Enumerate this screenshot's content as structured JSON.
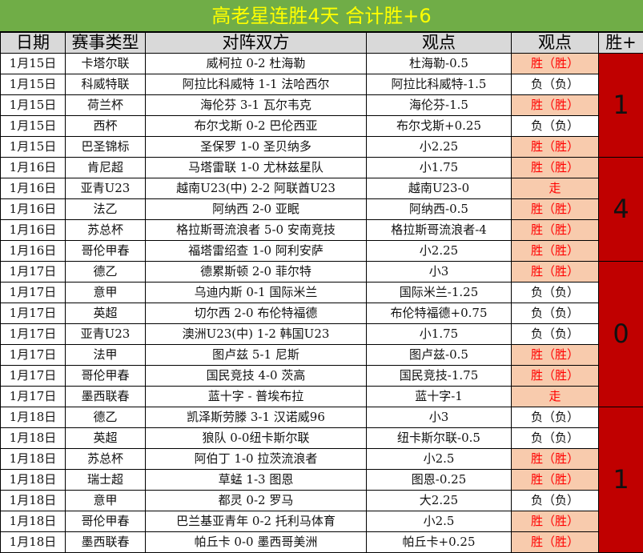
{
  "title": "高老星连胜4天  合计胜+6",
  "headers": [
    "日期",
    "赛事类型",
    "对阵双方",
    "观点",
    "观点",
    "胜+"
  ],
  "colors": {
    "title_bg": "#70ad47",
    "title_text": "#ffff00",
    "win_bg": "#f8cbad",
    "win_text": "#ff0000",
    "group_bg": "#c00000"
  },
  "groups": [
    {
      "wins": "1",
      "rows": [
        {
          "date": "1月15日",
          "league": "卡塔尔联",
          "match": "威柯拉 0-2 杜海勒",
          "pick": "杜海勒-0.5",
          "result": "胜（胜）",
          "status": "win"
        },
        {
          "date": "1月15日",
          "league": "科威特联",
          "match": "阿拉比科威特 1-1 法哈西尔",
          "pick": "阿拉比科威特-1.5",
          "result": "负（负）",
          "status": "lose"
        },
        {
          "date": "1月15日",
          "league": "荷兰杯",
          "match": "海伦芬 3-1 瓦尔韦克",
          "pick": "海伦芬-1.5",
          "result": "胜（胜）",
          "status": "win"
        },
        {
          "date": "1月15日",
          "league": "西杯",
          "match": "布尔戈斯 0-2 巴伦西亚",
          "pick": "布尔戈斯+0.25",
          "result": "负（负）",
          "status": "lose"
        },
        {
          "date": "1月15日",
          "league": "巴圣锦标",
          "match": "圣保罗 1-0 圣贝纳多",
          "pick": "小2.25",
          "result": "胜（胜）",
          "status": "win"
        }
      ]
    },
    {
      "wins": "4",
      "rows": [
        {
          "date": "1月16日",
          "league": "肯尼超",
          "match": "马塔雷联 1-0 尤林兹星队",
          "pick": "小1.75",
          "result": "胜（胜）",
          "status": "win"
        },
        {
          "date": "1月16日",
          "league": "亚青U23",
          "match": "越南U23(中) 2-2 阿联酋U23",
          "pick": "越南U23-0",
          "result": "走",
          "status": "win"
        },
        {
          "date": "1月16日",
          "league": "法乙",
          "match": "阿纳西 2-0 亚眠",
          "pick": "阿纳西-0.5",
          "result": "胜（胜）",
          "status": "win"
        },
        {
          "date": "1月16日",
          "league": "苏总杯",
          "match": "格拉斯哥流浪者 5-0 安南竞技",
          "pick": "格拉斯哥流浪者-4",
          "result": "胜（胜）",
          "status": "win"
        },
        {
          "date": "1月16日",
          "league": "哥伦甲春",
          "match": "福塔雷绍查 1-0 阿利安萨",
          "pick": "小2.25",
          "result": "胜（胜）",
          "status": "win"
        }
      ]
    },
    {
      "wins": "0",
      "rows": [
        {
          "date": "1月17日",
          "league": "德乙",
          "match": "德累斯顿 2-0 菲尔特",
          "pick": "小3",
          "result": "胜（胜）",
          "status": "win"
        },
        {
          "date": "1月17日",
          "league": "意甲",
          "match": "乌迪内斯 0-1 国际米兰",
          "pick": "国际米兰-1.25",
          "result": "负（负）",
          "status": "lose"
        },
        {
          "date": "1月17日",
          "league": "英超",
          "match": "切尔西 2-0 布伦特福德",
          "pick": "布伦特福德+0.75",
          "result": "负（负）",
          "status": "lose"
        },
        {
          "date": "1月17日",
          "league": "亚青U23",
          "match": "澳洲U23(中) 1-2 韩国U23",
          "pick": "小1.75",
          "result": "负（负）",
          "status": "lose"
        },
        {
          "date": "1月17日",
          "league": "法甲",
          "match": "图卢兹 5-1 尼斯",
          "pick": "图卢兹-0.5",
          "result": "胜（胜）",
          "status": "win"
        },
        {
          "date": "1月17日",
          "league": "哥伦甲春",
          "match": "国民竞技 4-0 茨高",
          "pick": "国民竞技-1.75",
          "result": "胜（胜）",
          "status": "win"
        },
        {
          "date": "1月17日",
          "league": "墨西联春",
          "match": "蓝十字 - 普埃布拉",
          "pick": "蓝十字-1",
          "result": "走",
          "status": "win"
        }
      ]
    },
    {
      "wins": "1",
      "rows": [
        {
          "date": "1月18日",
          "league": "德乙",
          "match": "凯泽斯劳滕 3-1 汉诺威96",
          "pick": "小3",
          "result": "负（负）",
          "status": "lose"
        },
        {
          "date": "1月18日",
          "league": "英超",
          "match": "狼队 0-0纽卡斯尔联",
          "pick": "纽卡斯尔联-0.5",
          "result": "负（负）",
          "status": "lose"
        },
        {
          "date": "1月18日",
          "league": "苏总杯",
          "match": "阿伯丁 1-0 拉茨流浪者",
          "pick": "小2.5",
          "result": "胜（胜）",
          "status": "win"
        },
        {
          "date": "1月18日",
          "league": "瑞士超",
          "match": "草蜢 1-3 图恩",
          "pick": "图恩-0.25",
          "result": "胜（胜）",
          "status": "win"
        },
        {
          "date": "1月18日",
          "league": "意甲",
          "match": "都灵 0-2 罗马",
          "pick": "大2.25",
          "result": "负（负）",
          "status": "lose"
        },
        {
          "date": "1月18日",
          "league": "哥伦甲春",
          "match": "巴兰基亚青年 0-2 托利马体育",
          "pick": "小2.5",
          "result": "胜（胜）",
          "status": "win"
        },
        {
          "date": "1月18日",
          "league": "墨西联春",
          "match": "帕丘卡 0-0 墨西哥美洲",
          "pick": "帕丘卡+0.25",
          "result": "胜（胜）",
          "status": "win"
        }
      ]
    }
  ]
}
